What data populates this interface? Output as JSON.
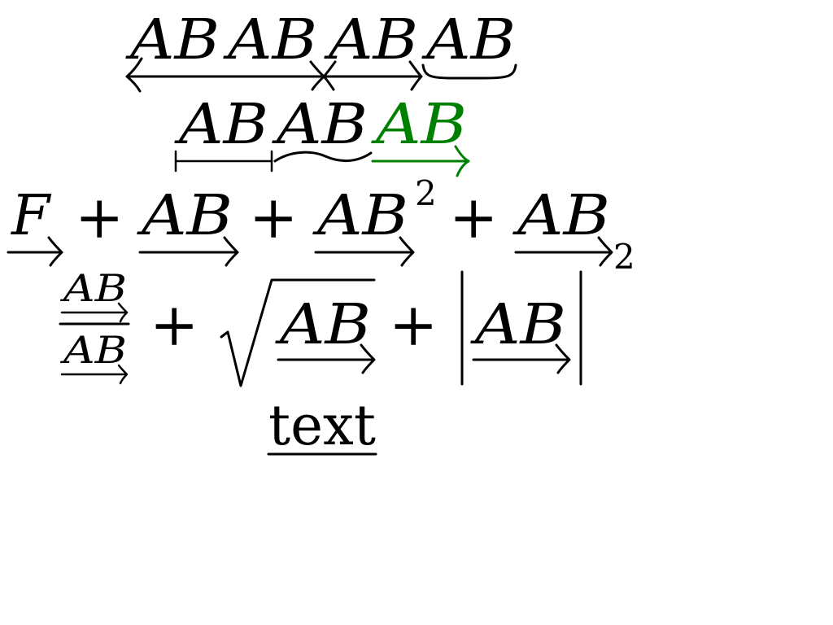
{
  "math": {
    "row1": {
      "t1": "AB",
      "t2": "AB",
      "t3": "AB",
      "t4": "AB"
    },
    "row2": {
      "t1": "AB",
      "t2": "AB",
      "t3": "AB"
    },
    "row3": {
      "f": "F",
      "plus1": "+",
      "t1": "AB",
      "plus2": "+",
      "t2": "AB",
      "sup": "2",
      "plus3": "+",
      "t3": "AB",
      "sub": "2"
    },
    "row4": {
      "num": "AB",
      "den": "AB",
      "plus1": "+",
      "sqrt_arg": "AB",
      "plus2": "+",
      "abs_arg": "AB"
    },
    "text": "text"
  },
  "colors": {
    "ink": "#000000",
    "accent": "#008000",
    "background": "#ffffff"
  }
}
